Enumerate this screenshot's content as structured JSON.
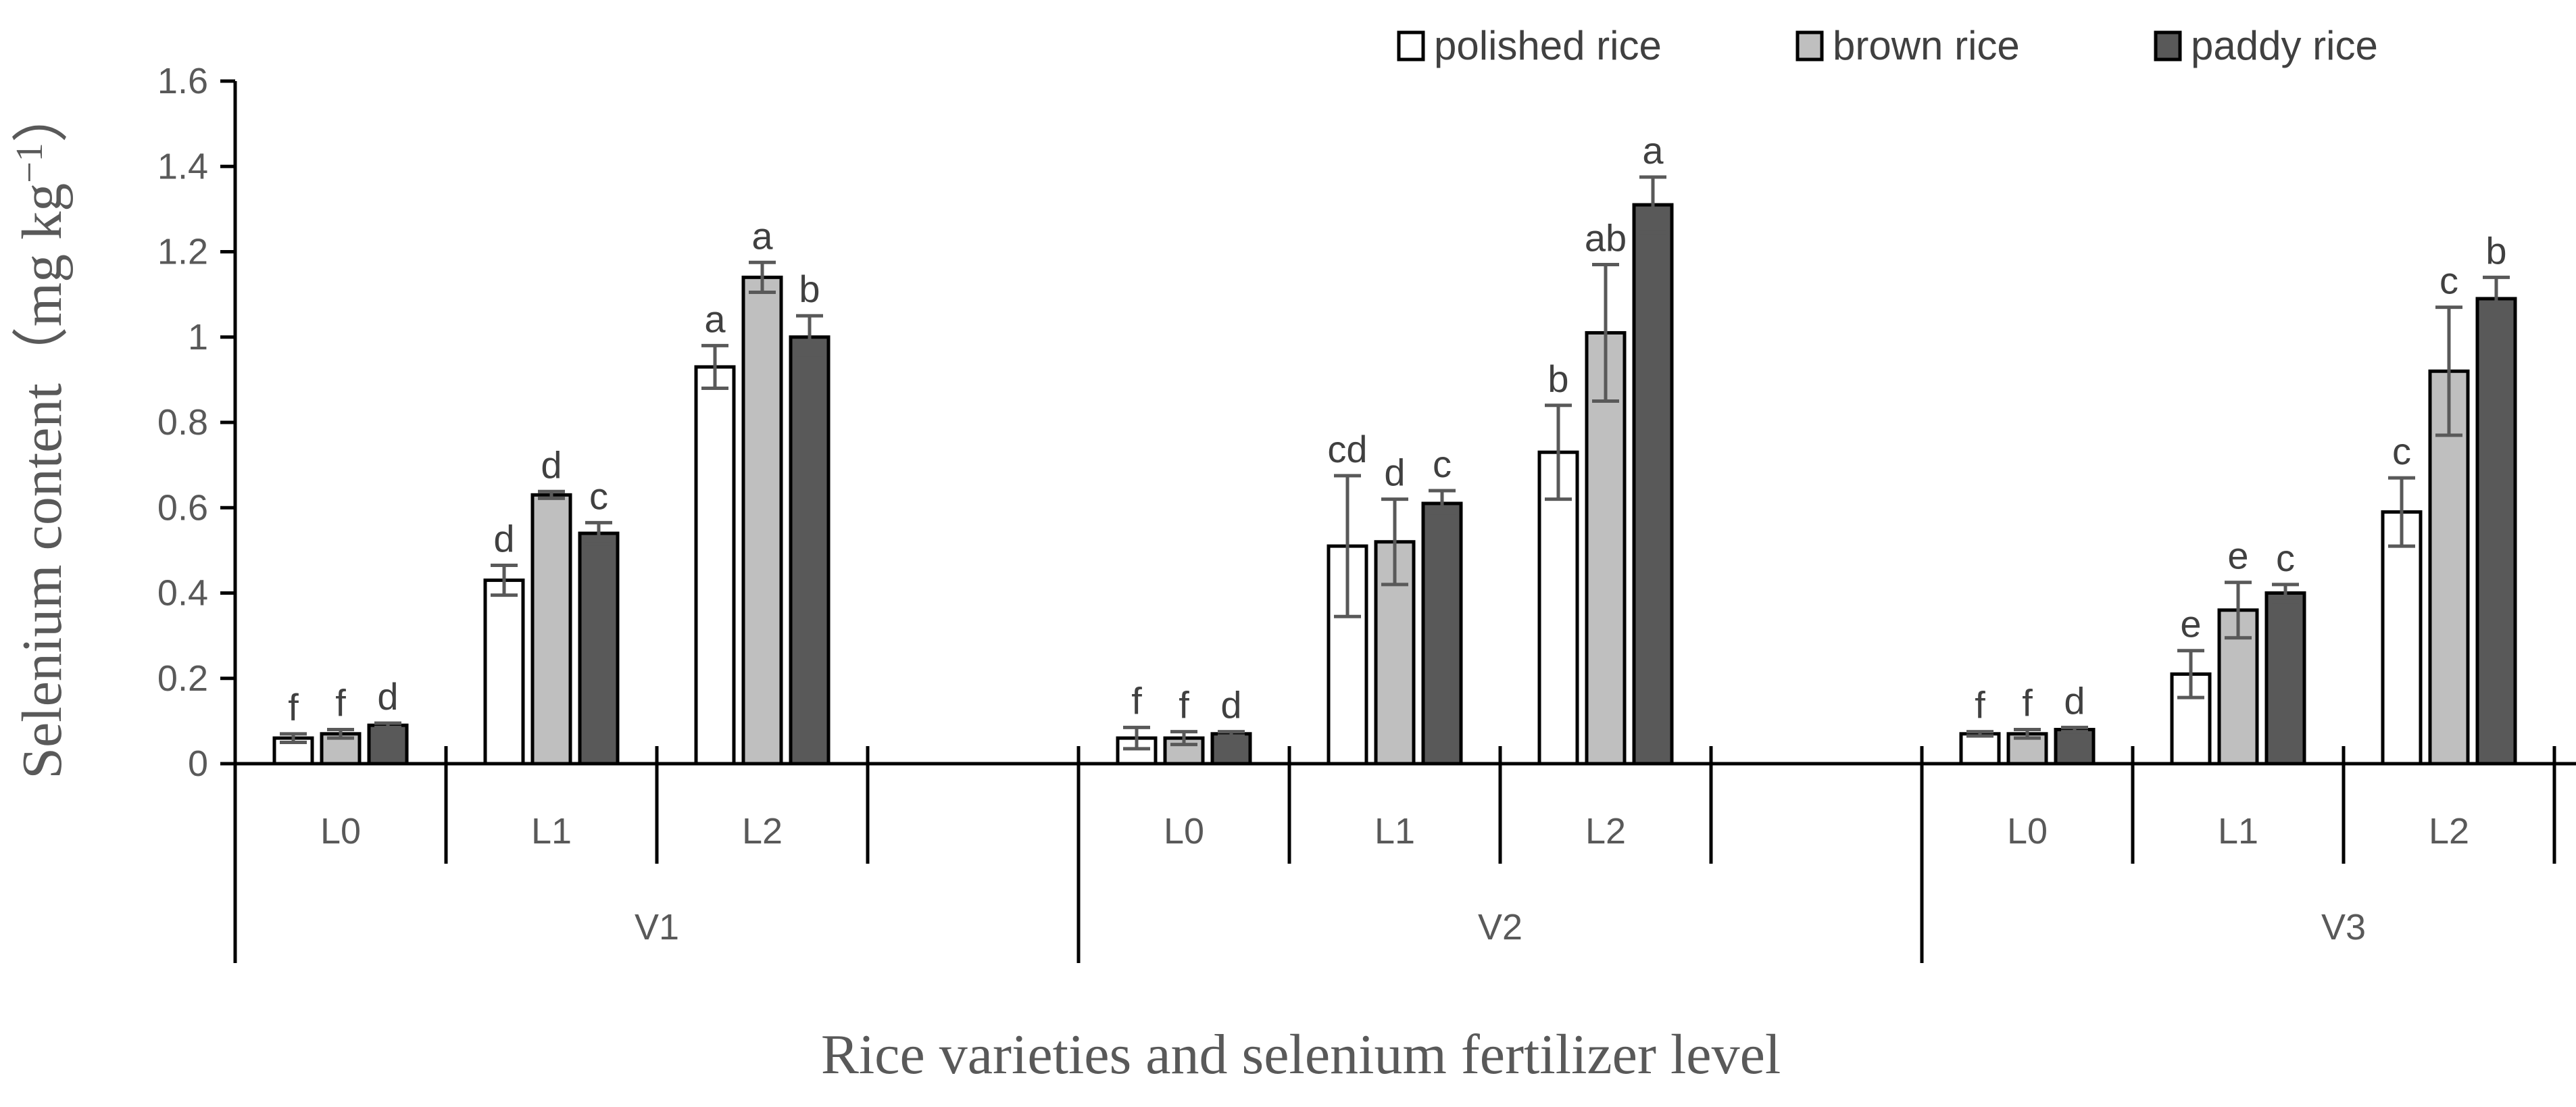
{
  "chart_data": {
    "type": "bar",
    "title": "",
    "ylabel": "Selenium content（mg kg",
    "ylabel_sup": "−1",
    "ylabel_close": "）",
    "xlabel": "Rice varieties and selenium fertilizer level",
    "ylim": [
      0,
      1.6
    ],
    "yticks": [
      0,
      0.2,
      0.4,
      0.6,
      0.8,
      1,
      1.2,
      1.4,
      1.6
    ],
    "ytick_labels": [
      "0",
      "0.2",
      "0.4",
      "0.6",
      "0.8",
      "1",
      "1.2",
      "1.4",
      "1.6"
    ],
    "legend_position": "top-right",
    "series": [
      {
        "name": "polished rice",
        "color": "#ffffff"
      },
      {
        "name": "brown rice",
        "color": "#bfbfbf"
      },
      {
        "name": "paddy rice",
        "color": "#595959"
      }
    ],
    "groups": [
      {
        "name": "V1",
        "levels": [
          {
            "name": "L0",
            "values": [
              0.06,
              0.07,
              0.09
            ],
            "errors": [
              0.01,
              0.01,
              0.005
            ],
            "letters": [
              "f",
              "f",
              "d"
            ]
          },
          {
            "name": "L1",
            "values": [
              0.43,
              0.63,
              0.54
            ],
            "errors": [
              0.035,
              0.008,
              0.025
            ],
            "letters": [
              "d",
              "d",
              "c"
            ]
          },
          {
            "name": "L2",
            "values": [
              0.93,
              1.14,
              1.0
            ],
            "errors": [
              0.05,
              0.035,
              0.05
            ],
            "letters": [
              "a",
              "a",
              "b"
            ]
          }
        ]
      },
      {
        "name": "V2",
        "levels": [
          {
            "name": "L0",
            "values": [
              0.06,
              0.06,
              0.07
            ],
            "errors": [
              0.025,
              0.015,
              0.005
            ],
            "letters": [
              "f",
              "f",
              "d"
            ]
          },
          {
            "name": "L1",
            "values": [
              0.51,
              0.52,
              0.61
            ],
            "errors": [
              0.165,
              0.1,
              0.03
            ],
            "letters": [
              "cd",
              "d",
              "c"
            ]
          },
          {
            "name": "L2",
            "values": [
              0.73,
              1.01,
              1.31
            ],
            "errors": [
              0.11,
              0.16,
              0.065
            ],
            "letters": [
              "b",
              "ab",
              "a"
            ]
          }
        ]
      },
      {
        "name": "V3",
        "levels": [
          {
            "name": "L0",
            "values": [
              0.07,
              0.07,
              0.08
            ],
            "errors": [
              0.005,
              0.01,
              0.005
            ],
            "letters": [
              "f",
              "f",
              "d"
            ]
          },
          {
            "name": "L1",
            "values": [
              0.21,
              0.36,
              0.4
            ],
            "errors": [
              0.055,
              0.065,
              0.02
            ],
            "letters": [
              "e",
              "e",
              "c"
            ]
          },
          {
            "name": "L2",
            "values": [
              0.59,
              0.92,
              1.09
            ],
            "errors": [
              0.08,
              0.15,
              0.05
            ],
            "letters": [
              "c",
              "c",
              "b"
            ]
          }
        ]
      }
    ]
  }
}
